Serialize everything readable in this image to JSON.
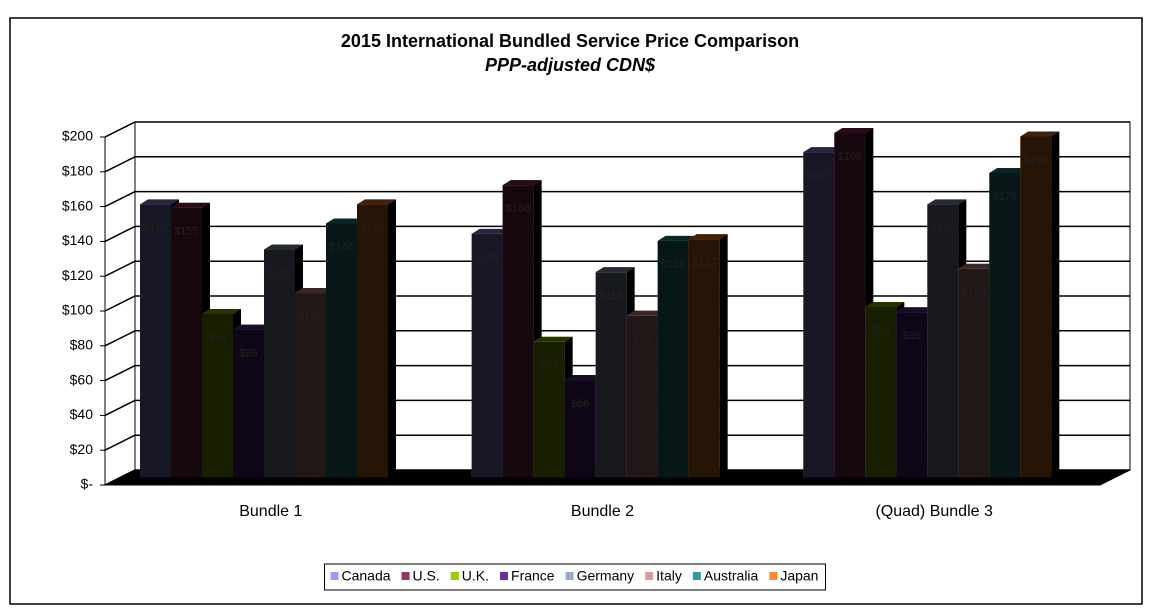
{
  "chart_data": {
    "type": "bar3d",
    "title": "2015 International Bundled Service Price Comparison",
    "subtitle": "PPP-adjusted CDN$",
    "categories": [
      "Bundle 1",
      "Bundle 2",
      "(Quad) Bundle 3"
    ],
    "series": [
      {
        "name": "Canada",
        "color": "#9999ff",
        "values": [
          157,
          140,
          187
        ],
        "value_labels": [
          "$157",
          "$140",
          "$187"
        ]
      },
      {
        "name": "U.S.",
        "color": "#993366",
        "values": [
          155,
          168,
          198
        ],
        "value_labels": [
          "$155",
          "$168",
          "$198"
        ]
      },
      {
        "name": "U.K.",
        "color": "#99cc00",
        "values": [
          94,
          78,
          98
        ],
        "value_labels": [
          "$94",
          "$78",
          "$98"
        ]
      },
      {
        "name": "France",
        "color": "#663399",
        "values": [
          85,
          56,
          95
        ],
        "value_labels": [
          "$85",
          "$56",
          "$95"
        ]
      },
      {
        "name": "Germany",
        "color": "#99aacc",
        "values": [
          131,
          118,
          157
        ],
        "value_labels": [
          "$131",
          "$118",
          "$157"
        ]
      },
      {
        "name": "Italy",
        "color": "#dd9999",
        "values": [
          106,
          93,
          120
        ],
        "value_labels": [
          "$106",
          "$93",
          "$120"
        ]
      },
      {
        "name": "Australia",
        "color": "#339999",
        "values": [
          146,
          136,
          175
        ],
        "value_labels": [
          "$146",
          "$136",
          "$175"
        ]
      },
      {
        "name": "Japan",
        "color": "#ff8833",
        "values": [
          157,
          137,
          196
        ],
        "value_labels": [
          "$157",
          "$137",
          "$196"
        ]
      }
    ],
    "ylim": [
      0,
      200
    ],
    "yticks": [
      {
        "value": 0,
        "label": "$-"
      },
      {
        "value": 20,
        "label": "$20"
      },
      {
        "value": 40,
        "label": "$40"
      },
      {
        "value": 60,
        "label": "$60"
      },
      {
        "value": 80,
        "label": "$80"
      },
      {
        "value": 100,
        "label": "$100"
      },
      {
        "value": 120,
        "label": "$120"
      },
      {
        "value": 140,
        "label": "$140"
      },
      {
        "value": 160,
        "label": "$160"
      },
      {
        "value": 180,
        "label": "$180"
      },
      {
        "value": 200,
        "label": "$200"
      }
    ],
    "grid": true
  }
}
